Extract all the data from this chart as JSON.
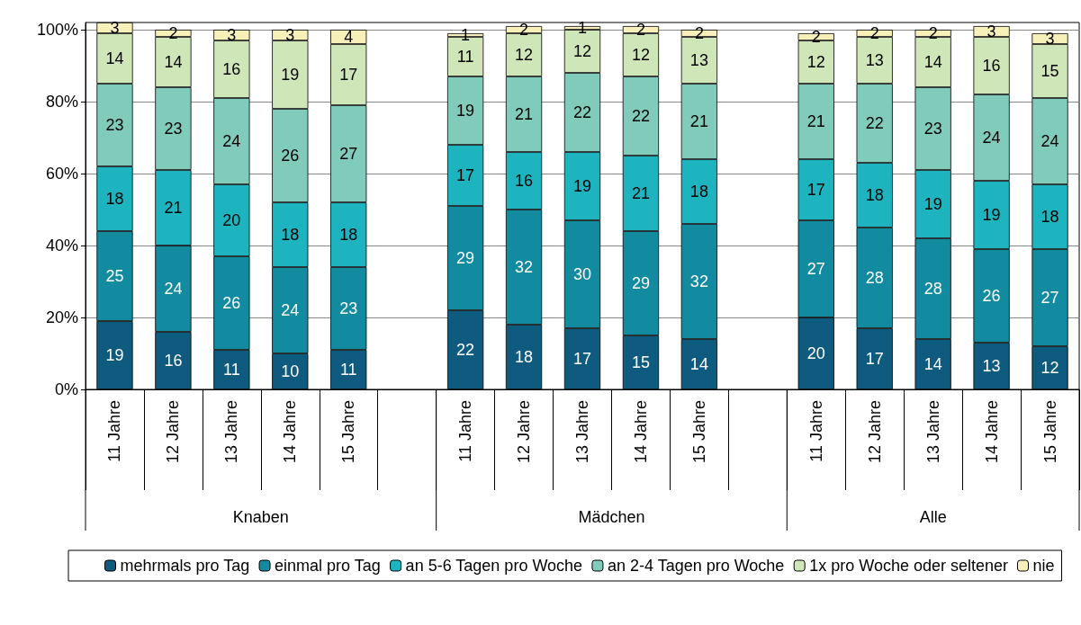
{
  "chart_data": {
    "type": "bar",
    "stacked": true,
    "data_labels": true,
    "grid": "y",
    "legend": "bottom",
    "categories": [
      "11 Jahre",
      "12 Jahre",
      "13 Jahre",
      "14 Jahre",
      "15 Jahre",
      null,
      "11 Jahre",
      "12 Jahre",
      "13 Jahre",
      "14 Jahre",
      "15 Jahre",
      null,
      "11 Jahre",
      "12 Jahre",
      "13 Jahre",
      "14 Jahre",
      "15 Jahre"
    ],
    "annotations": [
      "Knaben",
      "Mädchen",
      "Alle"
    ],
    "ylim": [
      0,
      102
    ],
    "yticks": [
      {
        "value": 0,
        "label": "0%"
      },
      {
        "value": 20,
        "label": "20%"
      },
      {
        "value": 40,
        "label": "40%"
      },
      {
        "value": 60,
        "label": "60%"
      },
      {
        "value": 80,
        "label": "80%"
      },
      {
        "value": 100,
        "label": "100%"
      }
    ],
    "series": [
      {
        "name": "mehrmals pro Tag",
        "color": "#0f5b7f",
        "values": [
          19,
          16,
          11,
          10,
          11,
          null,
          22,
          18,
          17,
          15,
          14,
          null,
          20,
          17,
          14,
          13,
          12
        ]
      },
      {
        "name": "einmal pro Tag",
        "color": "#128a9f",
        "values": [
          25,
          24,
          26,
          24,
          23,
          null,
          29,
          32,
          30,
          29,
          32,
          null,
          27,
          28,
          28,
          26,
          27
        ]
      },
      {
        "name": "an 5-6 Tagen pro Woche",
        "color": "#1db4c0",
        "values": [
          18,
          21,
          20,
          18,
          18,
          null,
          17,
          16,
          19,
          21,
          18,
          null,
          17,
          18,
          19,
          19,
          18
        ]
      },
      {
        "name": "an 2-4 Tagen pro Woche",
        "color": "#80cbba",
        "values": [
          23,
          23,
          24,
          26,
          27,
          null,
          19,
          21,
          22,
          22,
          21,
          null,
          21,
          22,
          23,
          24,
          24
        ]
      },
      {
        "name": "1x pro Woche oder seltener",
        "color": "#cfe6b8",
        "values": [
          14,
          14,
          16,
          19,
          17,
          null,
          11,
          12,
          12,
          12,
          13,
          null,
          12,
          13,
          14,
          16,
          15
        ]
      },
      {
        "name": "nie",
        "color": "#f7f1b9",
        "values": [
          3,
          2,
          3,
          3,
          4,
          null,
          1,
          2,
          1,
          2,
          2,
          null,
          2,
          2,
          2,
          3,
          3
        ]
      }
    ]
  }
}
